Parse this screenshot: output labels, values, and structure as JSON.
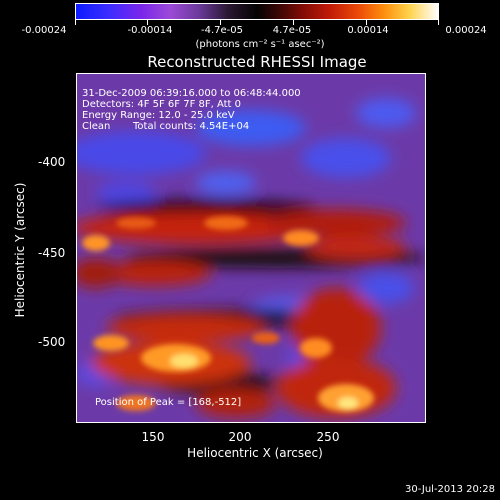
{
  "plot": {
    "title": "Reconstructed RHESSI Image",
    "xlabel": "Heliocentric X (arcsec)",
    "ylabel": "Heliocentric Y (arcsec)",
    "x_ticks": [
      "150",
      "200",
      "250"
    ],
    "y_ticks": [
      "-400",
      "-450",
      "-500"
    ]
  },
  "colorbar": {
    "tick_labels": [
      "-0.00024",
      "-0.00014",
      "-4.7e-05",
      "4.7e-05",
      "0.00014",
      "0.00024"
    ],
    "units": "(photons cm⁻² s⁻¹ asec⁻²)"
  },
  "info": {
    "time_range": "31-Dec-2009 06:39:16.000 to 06:48:44.000",
    "detectors": "Detectors: 4F 5F 6F 7F 8F, Att 0",
    "energy": "Energy Range: 12.0 - 25.0 keV",
    "algorithm": "Clean",
    "counts": "Total counts: 4.54E+04",
    "peak": "Position of Peak = [168,-512]"
  },
  "datestamp": "30-Jul-2013 20:28"
}
